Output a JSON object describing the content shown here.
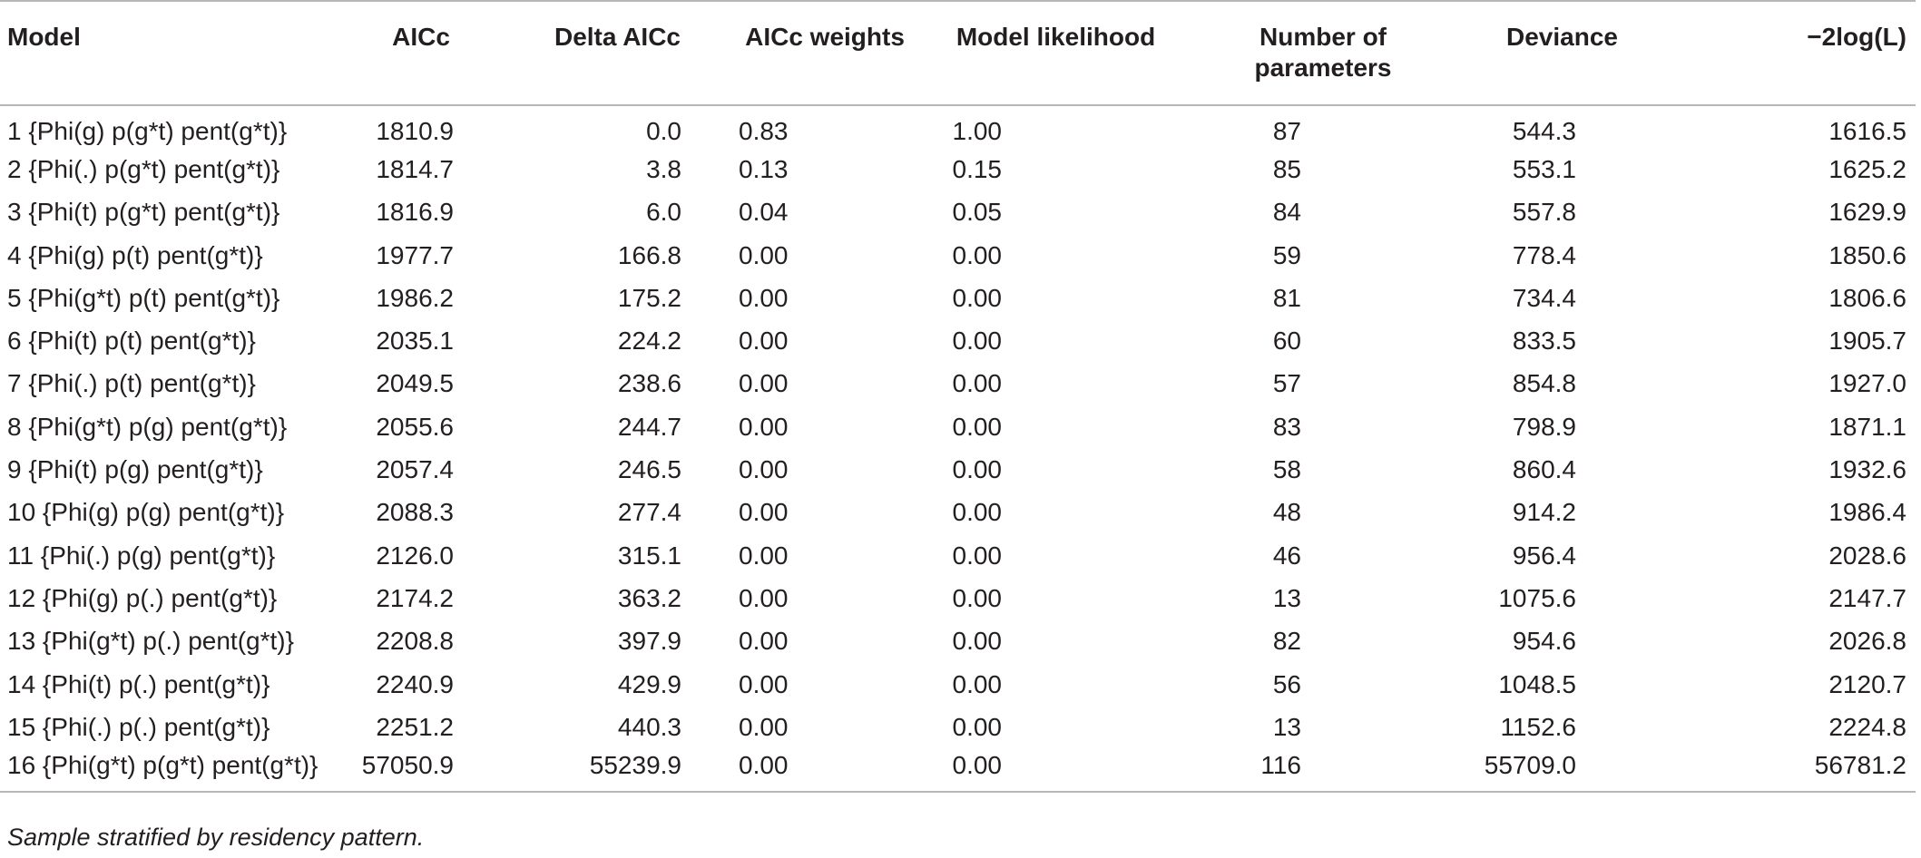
{
  "table": {
    "headers": [
      "Model",
      "AICc",
      "Delta AICc",
      "AICc weights",
      "Model likelihood",
      "Number of parameters",
      "Deviance",
      "−2log(L)"
    ],
    "rows": [
      [
        "1 {Phi(g) p(g*t) pent(g*t)}",
        "1810.9",
        "0.0",
        "0.83",
        "1.00",
        "87",
        "544.3",
        "1616.5"
      ],
      [
        "2 {Phi(.) p(g*t) pent(g*t)}",
        "1814.7",
        "3.8",
        "0.13",
        "0.15",
        "85",
        "553.1",
        "1625.2"
      ],
      [
        "3 {Phi(t) p(g*t) pent(g*t)}",
        "1816.9",
        "6.0",
        "0.04",
        "0.05",
        "84",
        "557.8",
        "1629.9"
      ],
      [
        "4 {Phi(g) p(t) pent(g*t)}",
        "1977.7",
        "166.8",
        "0.00",
        "0.00",
        "59",
        "778.4",
        "1850.6"
      ],
      [
        "5 {Phi(g*t) p(t) pent(g*t)}",
        "1986.2",
        "175.2",
        "0.00",
        "0.00",
        "81",
        "734.4",
        "1806.6"
      ],
      [
        "6 {Phi(t) p(t) pent(g*t)}",
        "2035.1",
        "224.2",
        "0.00",
        "0.00",
        "60",
        "833.5",
        "1905.7"
      ],
      [
        "7 {Phi(.) p(t) pent(g*t)}",
        "2049.5",
        "238.6",
        "0.00",
        "0.00",
        "57",
        "854.8",
        "1927.0"
      ],
      [
        "8 {Phi(g*t) p(g) pent(g*t)}",
        "2055.6",
        "244.7",
        "0.00",
        "0.00",
        "83",
        "798.9",
        "1871.1"
      ],
      [
        "9 {Phi(t) p(g) pent(g*t)}",
        "2057.4",
        "246.5",
        "0.00",
        "0.00",
        "58",
        "860.4",
        "1932.6"
      ],
      [
        "10 {Phi(g) p(g) pent(g*t)}",
        "2088.3",
        "277.4",
        "0.00",
        "0.00",
        "48",
        "914.2",
        "1986.4"
      ],
      [
        "11 {Phi(.) p(g) pent(g*t)}",
        "2126.0",
        "315.1",
        "0.00",
        "0.00",
        "46",
        "956.4",
        "2028.6"
      ],
      [
        "12 {Phi(g) p(.) pent(g*t)}",
        "2174.2",
        "363.2",
        "0.00",
        "0.00",
        "13",
        "1075.6",
        "2147.7"
      ],
      [
        "13 {Phi(g*t) p(.) pent(g*t)}",
        "2208.8",
        "397.9",
        "0.00",
        "0.00",
        "82",
        "954.6",
        "2026.8"
      ],
      [
        "14 {Phi(t) p(.) pent(g*t)}",
        "2240.9",
        "429.9",
        "0.00",
        "0.00",
        "56",
        "1048.5",
        "2120.7"
      ],
      [
        "15 {Phi(.) p(.) pent(g*t)}",
        "2251.2",
        "440.3",
        "0.00",
        "0.00",
        "13",
        "1152.6",
        "2224.8"
      ],
      [
        "16 {Phi(g*t) p(g*t) pent(g*t)}",
        "57050.9",
        "55239.9",
        "0.00",
        "0.00",
        "116",
        "55709.0",
        "56781.2"
      ]
    ]
  },
  "footnote": "Sample stratified by residency pattern."
}
